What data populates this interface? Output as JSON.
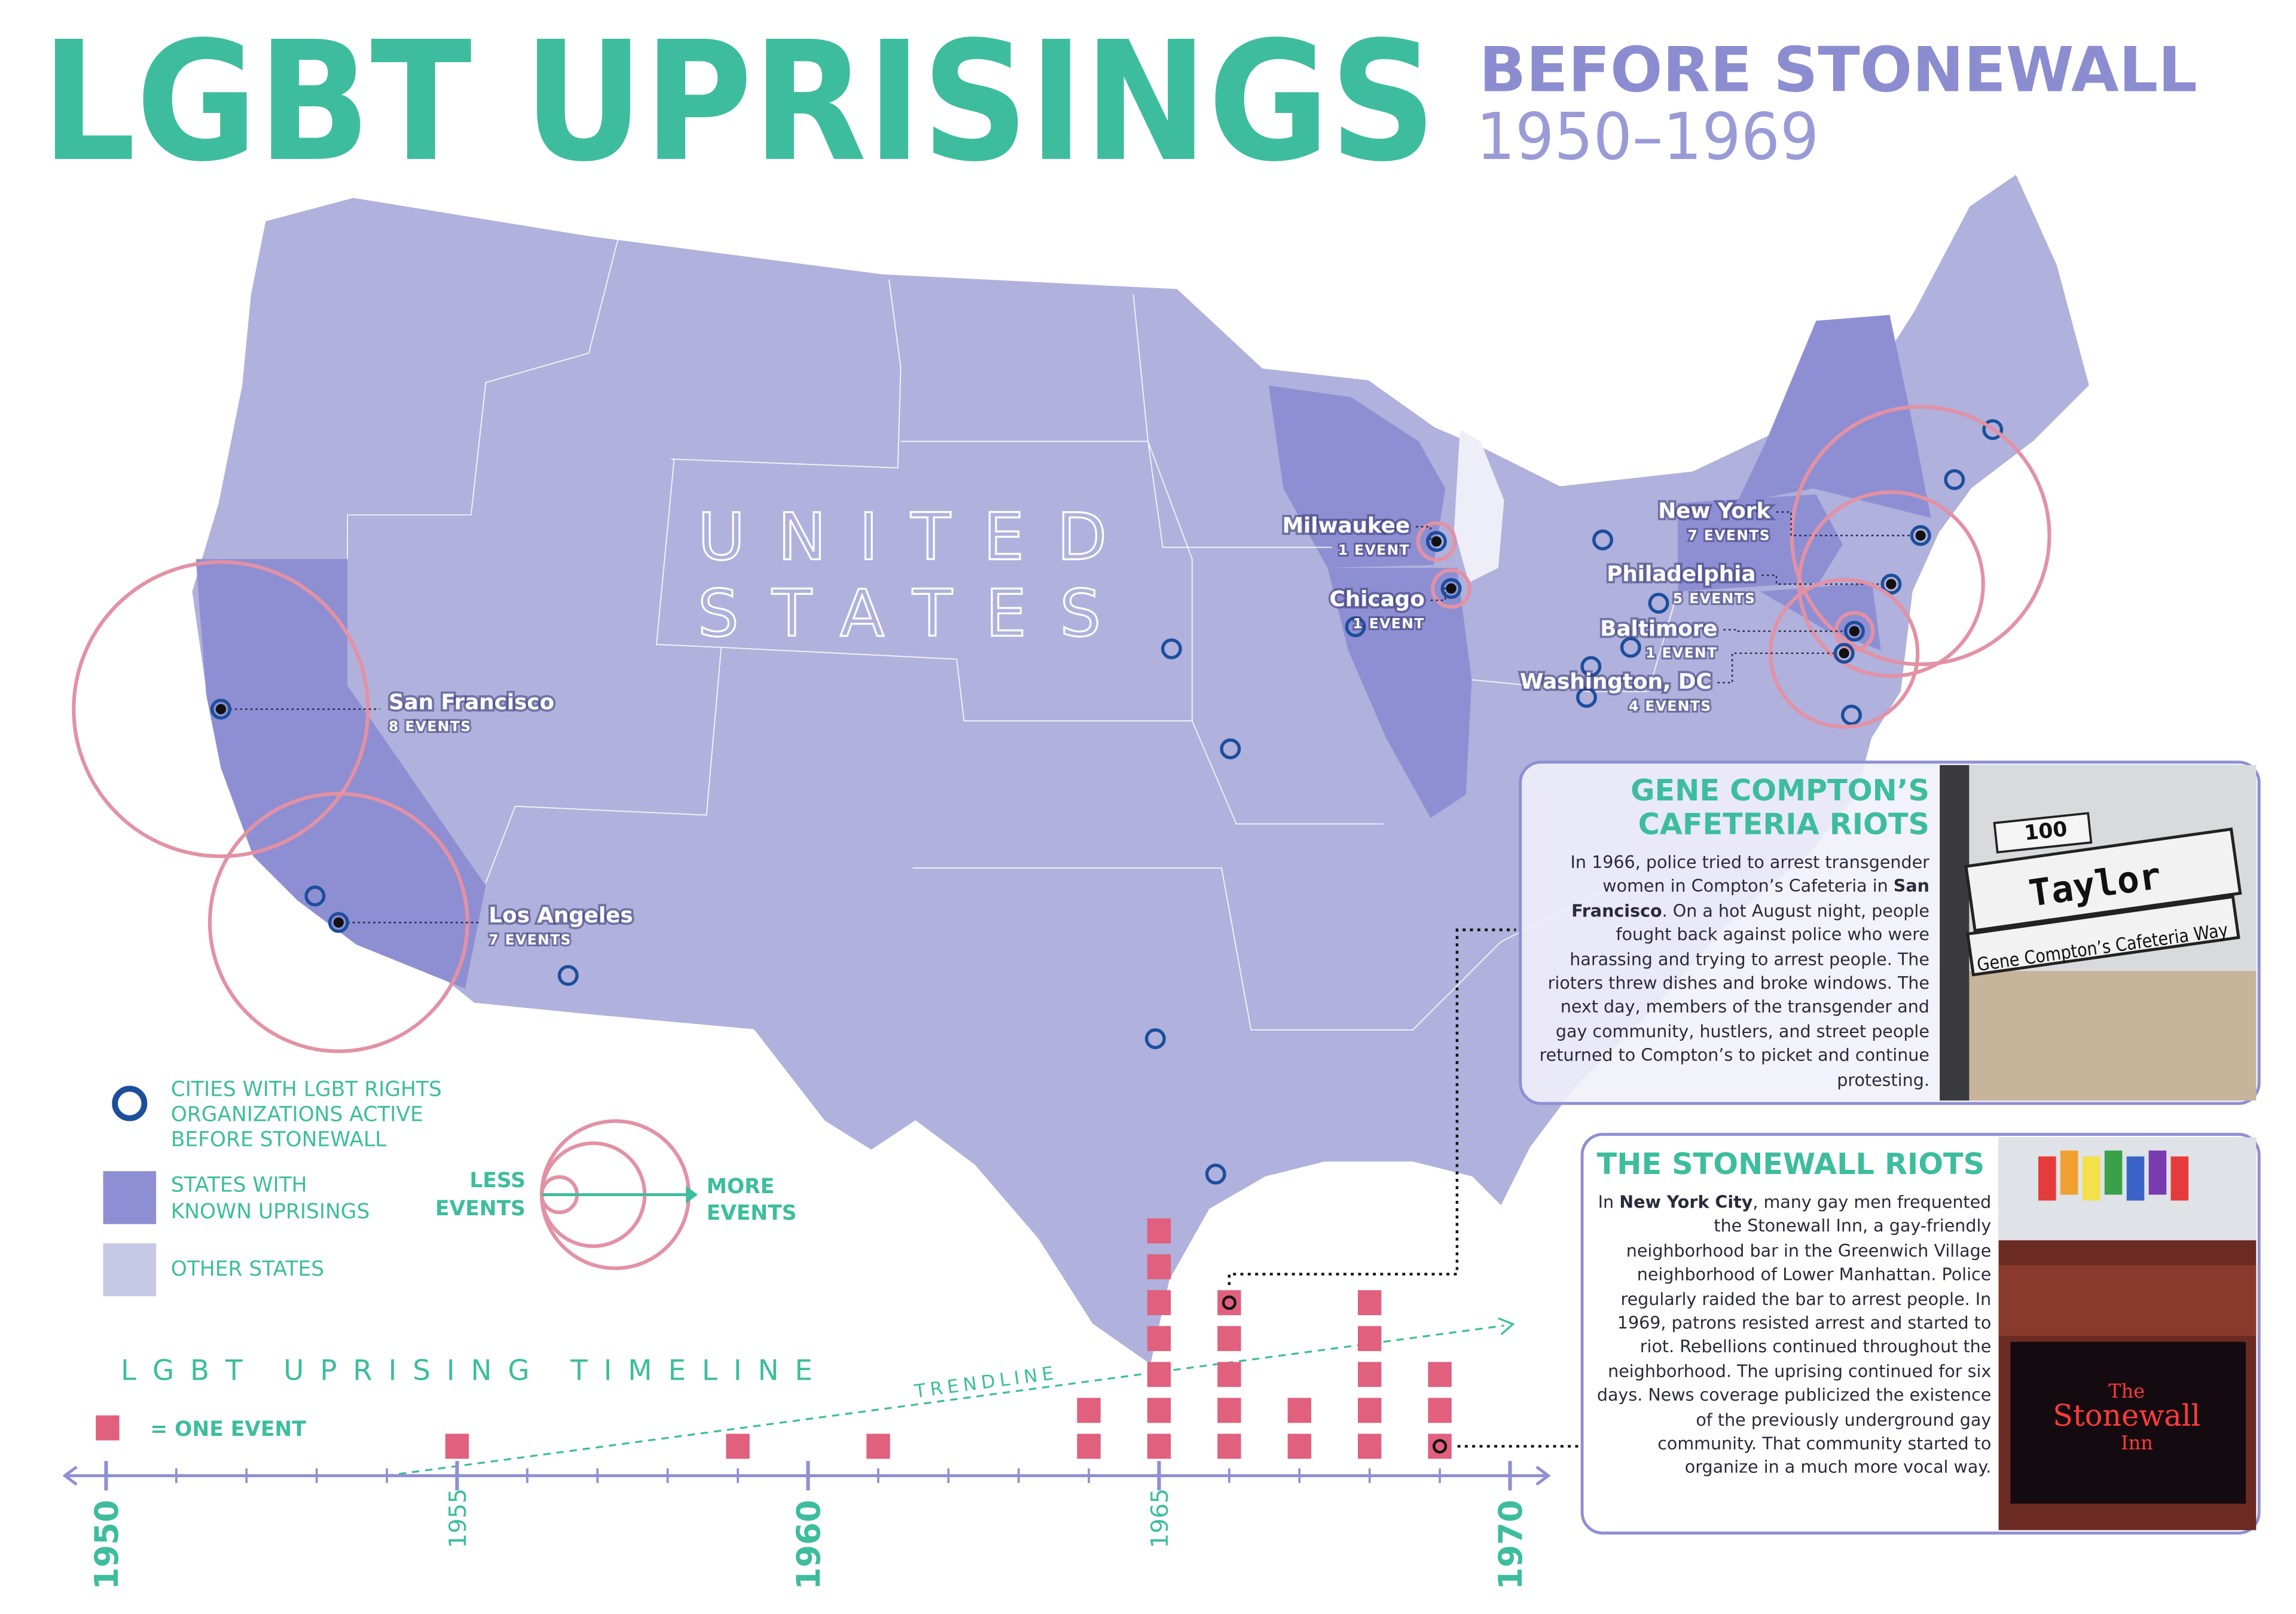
{
  "header": {
    "title": "LGBT UPRISINGS",
    "subtitle": "BEFORE STONEWALL",
    "years": "1950–1969"
  },
  "map": {
    "label": [
      "UNITED",
      "STATES"
    ]
  },
  "cities": [
    {
      "name": "San Francisco",
      "events": 8,
      "events_label": "8 EVENTS"
    },
    {
      "name": "Los Angeles",
      "events": 7,
      "events_label": "7 EVENTS"
    },
    {
      "name": "Milwaukee",
      "events": 1,
      "events_label": "1 EVENT"
    },
    {
      "name": "Chicago",
      "events": 1,
      "events_label": "1 EVENT"
    },
    {
      "name": "New York",
      "events": 7,
      "events_label": "7 EVENTS"
    },
    {
      "name": "Philadelphia",
      "events": 5,
      "events_label": "5 EVENTS"
    },
    {
      "name": "Baltimore",
      "events": 1,
      "events_label": "1 EVENT"
    },
    {
      "name": "Washington, DC",
      "events": 4,
      "events_label": "4 EVENTS"
    }
  ],
  "legend": {
    "organizations": [
      "CITIES WITH LGBT RIGHTS",
      "ORGANIZATIONS ACTIVE",
      "BEFORE STONEWALL"
    ],
    "uprising_states": [
      "STATES WITH",
      "KNOWN UPRISINGS"
    ],
    "other_states": "OTHER STATES",
    "less": [
      "LESS",
      "EVENTS"
    ],
    "more": [
      "MORE",
      "EVENTS"
    ]
  },
  "chart_data": {
    "type": "bar",
    "title": "LGBT UPRISING TIMELINE",
    "unit_label": "= ONE EVENT",
    "trend_label": "TRENDLINE",
    "x": [
      1955,
      1959,
      1961,
      1964,
      1965,
      1966,
      1967,
      1968,
      1969
    ],
    "values": [
      1,
      1,
      1,
      2,
      7,
      5,
      2,
      5,
      3
    ],
    "xlim": [
      1950,
      1970
    ],
    "xticks": [
      1950,
      1955,
      1960,
      1965,
      1970
    ],
    "color": "#e0607e"
  },
  "stories": [
    {
      "title": [
        "GENE COMPTON’S",
        "CAFETERIA RIOTS"
      ],
      "body": [
        "In 1966, police tried to arrest transgender women in Compton’s Cafeteria in ",
        "San Francisco",
        ". On a hot August night, people fought back against police who were harassing and trying to arrest people. The rioters threw dishes and broke windows. The next day, members of the transgender and gay community, hustlers, and street people returned to Compton’s to picket and continue protesting."
      ],
      "photo_text": [
        "100",
        "Taylor",
        "Gene Compton’s Cafeteria Way"
      ]
    },
    {
      "title": [
        "THE STONEWALL RIOTS"
      ],
      "body": [
        "In ",
        "New York City",
        ", many gay men frequented the Stonewall Inn, a gay-friendly neighborhood bar in the Greenwich Village neighborhood of Lower Manhattan. Police regularly raided the bar to arrest people. In 1969, patrons resisted arrest and started to riot. Rebellions continued throughout the neighborhood. The uprising continued for six days. News coverage publicized the existence of the previously underground gay community. That community started to organize in a much more vocal way."
      ],
      "photo_text": [
        "The",
        "Stonewall",
        "Inn"
      ]
    }
  ]
}
